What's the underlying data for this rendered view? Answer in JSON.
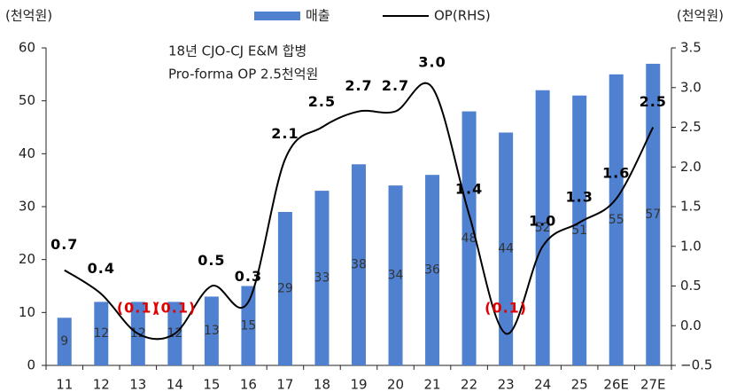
{
  "chart_data": {
    "type": "bar_line",
    "left_unit": "(천억원)",
    "right_unit": "(천억원)",
    "annotation": [
      "18년 CJO-CJ E&M 합병",
      "Pro-forma OP 2.5천억원"
    ],
    "categories": [
      "11",
      "12",
      "13",
      "14",
      "15",
      "16",
      "17",
      "18",
      "19",
      "20",
      "21",
      "22",
      "23",
      "24",
      "25",
      "26E",
      "27E"
    ],
    "series": [
      {
        "name": "매출",
        "color": "#4f81d0",
        "values": [
          9,
          12,
          12,
          12,
          13,
          15,
          29,
          33,
          38,
          34,
          36,
          48,
          44,
          52,
          51,
          55,
          57
        ]
      },
      {
        "name": "OP(RHS)",
        "color": "#000000",
        "axis": "y2",
        "values": [
          0.7,
          0.4,
          -0.1,
          -0.1,
          0.5,
          0.3,
          2.1,
          2.5,
          2.7,
          2.7,
          3.0,
          1.4,
          -0.1,
          1.0,
          1.3,
          1.6,
          2.5
        ],
        "value_labels": [
          "0.7",
          "0.4",
          "(0.1)",
          "(0.1)",
          "0.5",
          "0.3",
          "2.1",
          "2.5",
          "2.7",
          "2.7",
          "3.0",
          "1.4",
          "(0.1)",
          "1.0",
          "1.3",
          "1.6",
          "2.5"
        ]
      }
    ],
    "ylim": [
      0,
      60
    ],
    "yticks": [
      0,
      10,
      20,
      30,
      40,
      50,
      60
    ],
    "y2lim": [
      -0.5,
      3.5
    ],
    "y2ticks": [
      {
        "value": -0.5,
        "label": "−0.5"
      },
      {
        "value": 0,
        "label": "0.0"
      },
      {
        "value": 0.5,
        "label": "0.5"
      },
      {
        "value": 1,
        "label": "1.0"
      },
      {
        "value": 1.5,
        "label": "1.5"
      },
      {
        "value": 2,
        "label": "2.0"
      },
      {
        "value": 2.5,
        "label": "2.5"
      },
      {
        "value": 3,
        "label": "3.0"
      },
      {
        "value": 3.5,
        "label": "3.5"
      }
    ],
    "negative_label_color": "#e00000"
  }
}
